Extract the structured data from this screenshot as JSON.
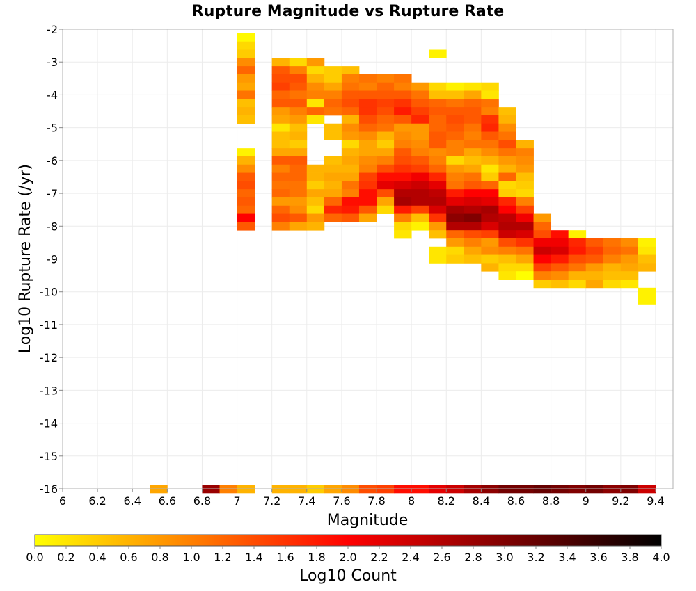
{
  "chart_data": {
    "type": "heatmap",
    "title": "Rupture Magnitude vs Rupture Rate",
    "xlabel": "Magnitude",
    "ylabel": "Log10 Rupture Rate (/yr)",
    "colorbar_label": "Log10 Count",
    "xlim": [
      6.0,
      9.5
    ],
    "ylim": [
      -16,
      -2
    ],
    "x_ticks": [
      "6",
      "6.2",
      "6.4",
      "6.6",
      "6.8",
      "7",
      "7.2",
      "7.4",
      "7.6",
      "7.8",
      "8",
      "8.2",
      "8.4",
      "8.6",
      "8.8",
      "9",
      "9.2",
      "9.4"
    ],
    "y_ticks": [
      "-2",
      "-3",
      "-4",
      "-5",
      "-6",
      "-7",
      "-8",
      "-9",
      "-10",
      "-11",
      "-12",
      "-13",
      "-14",
      "-15",
      "-16"
    ],
    "colorbar_ticks": [
      "0.0",
      "0.2",
      "0.4",
      "0.6",
      "0.8",
      "1.0",
      "1.2",
      "1.4",
      "1.6",
      "1.8",
      "2.0",
      "2.2",
      "2.4",
      "2.6",
      "2.8",
      "3.0",
      "3.2",
      "3.4",
      "3.6",
      "3.8",
      "4.0"
    ],
    "color_range": [
      0.0,
      4.0
    ],
    "colormap": [
      "#ffff00",
      "#ff0000",
      "#000000"
    ],
    "cell_width_mag": 0.1,
    "cell_height_log_rate": 0.25,
    "grid": true,
    "columns": [
      {
        "mag": 6.55,
        "cells": [
          [
            -16,
            0.7
          ]
        ]
      },
      {
        "mag": 6.85,
        "cells": [
          [
            -16,
            2.8
          ]
        ]
      },
      {
        "mag": 6.95,
        "cells": [
          [
            -16,
            1.0
          ]
        ]
      },
      {
        "mag": 7.05,
        "start": -2.25,
        "values": [
          0.05,
          0.3,
          0.4,
          0.9,
          1.2,
          0.8,
          0.7,
          1.1,
          0.5,
          0.6,
          0.5,
          null,
          null,
          null,
          0.1,
          0.6,
          0.9,
          1.3,
          1.4,
          1.2,
          1.3,
          1.2,
          2.0,
          1.3
        ]
      },
      {
        "mag": 7.05,
        "cells": [
          [
            -16,
            0.6
          ]
        ]
      },
      {
        "mag": 7.25,
        "start": -3.0,
        "values": [
          0.6,
          1.3,
          1.4,
          1.5,
          1.2,
          1.3,
          0.8,
          0.7,
          0.2,
          0.5,
          0.5,
          0.7,
          1.3,
          1.0,
          1.2,
          1.1,
          1.2,
          0.8,
          1.2,
          1.4,
          1.0
        ]
      },
      {
        "mag": 7.25,
        "cells": [
          [
            -16,
            0.6
          ]
        ]
      },
      {
        "mag": 7.35,
        "start": -3.0,
        "values": [
          0.3,
          1.0,
          1.4,
          1.3,
          1.1,
          1.3,
          1.0,
          0.8,
          0.5,
          0.6,
          0.4,
          0.7,
          1.3,
          1.2,
          1.2,
          1.1,
          1.1,
          0.8,
          0.9,
          1.3,
          0.7
        ]
      },
      {
        "mag": 7.35,
        "cells": [
          [
            -16,
            0.6
          ]
        ]
      },
      {
        "mag": 7.45,
        "start": -3.0,
        "values": [
          0.8,
          0.3,
          0.6,
          0.9,
          1.0,
          0.2,
          1.2,
          0.2,
          null,
          null,
          null,
          null,
          null,
          0.6,
          0.6,
          0.4,
          0.7,
          0.5,
          0.3,
          0.8,
          0.6
        ]
      },
      {
        "mag": 7.45,
        "cells": [
          [
            -16,
            0.4
          ]
        ]
      },
      {
        "mag": 7.55,
        "start": -3.25,
        "values": [
          0.4,
          0.4,
          0.7,
          1.0,
          1.2,
          1.1,
          null,
          0.5,
          0.5,
          null,
          null,
          0.5,
          0.6,
          0.7,
          0.6,
          0.7,
          1.2,
          1.7,
          1.2
        ]
      },
      {
        "mag": 7.55,
        "cells": [
          [
            -16,
            0.7
          ]
        ]
      },
      {
        "mag": 7.65,
        "start": -3.25,
        "values": [
          0.5,
          1.0,
          1.1,
          1.3,
          1.4,
          1.2,
          0.6,
          0.9,
          0.8,
          0.3,
          0.6,
          0.7,
          0.6,
          0.7,
          1.1,
          1.0,
          1.9,
          1.8,
          1.3
        ]
      },
      {
        "mag": 7.65,
        "cells": [
          [
            -16,
            0.9
          ]
        ]
      },
      {
        "mag": 7.75,
        "start": -3.5,
        "values": [
          1.1,
          1.0,
          1.3,
          1.6,
          1.6,
          1.4,
          1.2,
          0.9,
          0.7,
          0.7,
          0.9,
          1.0,
          1.5,
          1.6,
          1.9,
          1.9,
          1.3,
          0.7
        ]
      },
      {
        "mag": 7.75,
        "cells": [
          [
            -16,
            1.4
          ]
        ]
      },
      {
        "mag": 7.85,
        "start": -3.5,
        "values": [
          1.0,
          1.2,
          1.3,
          1.5,
          1.4,
          1.2,
          1.1,
          0.6,
          0.4,
          0.7,
          1.0,
          1.4,
          1.9,
          2.2,
          1.4,
          0.7,
          0.3
        ]
      },
      {
        "mag": 7.85,
        "cells": [
          [
            -16,
            1.5
          ]
        ]
      },
      {
        "mag": 7.95,
        "start": -3.5,
        "values": [
          1.1,
          1.0,
          1.3,
          1.6,
          1.8,
          1.3,
          0.8,
          0.9,
          1.0,
          1.3,
          1.4,
          1.6,
          1.9,
          2.3,
          2.6,
          2.7,
          1.8,
          1.0,
          0.3,
          0.2
        ]
      },
      {
        "mag": 7.95,
        "cells": [
          [
            -16,
            1.9
          ]
        ]
      },
      {
        "mag": 8.05,
        "start": -3.75,
        "values": [
          0.8,
          1.1,
          1.3,
          1.5,
          1.7,
          0.8,
          0.8,
          0.9,
          1.0,
          1.3,
          1.5,
          2.1,
          2.4,
          2.6,
          2.6,
          1.5,
          0.5,
          0.1
        ]
      },
      {
        "mag": 8.05,
        "cells": [
          [
            -16,
            1.9
          ]
        ]
      },
      {
        "mag": 8.15,
        "start": -2.75,
        "values": [
          0.1,
          null,
          null,
          null,
          0.3,
          0.5,
          1.2,
          1.3,
          1.2,
          1.2,
          1.3,
          1.3,
          0.9,
          1.0,
          1.2,
          1.7,
          2.2,
          2.5,
          2.6,
          2.3,
          1.6,
          0.8,
          0.5,
          null,
          0.2,
          0.2
        ]
      },
      {
        "mag": 8.15,
        "cells": [
          [
            -16,
            2.2
          ]
        ]
      },
      {
        "mag": 8.25,
        "start": -3.75,
        "values": [
          0.1,
          0.5,
          1.1,
          1.3,
          1.4,
          1.3,
          1.2,
          1.0,
          1.0,
          0.3,
          0.8,
          1.0,
          1.1,
          1.8,
          2.2,
          2.7,
          2.9,
          2.6,
          1.2,
          0.8,
          0.3,
          0.4
        ]
      },
      {
        "mag": 8.25,
        "cells": [
          [
            -16,
            2.4
          ]
        ]
      },
      {
        "mag": 8.35,
        "start": -3.75,
        "values": [
          0.2,
          0.7,
          1.2,
          1.3,
          1.3,
          1.1,
          1.0,
          1.1,
          0.7,
          0.5,
          0.7,
          1.1,
          1.3,
          2.0,
          2.3,
          2.6,
          3.0,
          2.6,
          1.4,
          1.0,
          0.7,
          0.5
        ]
      },
      {
        "mag": 8.35,
        "cells": [
          [
            -16,
            2.7
          ]
        ]
      },
      {
        "mag": 8.45,
        "start": -3.75,
        "values": [
          0.3,
          0.2,
          1.1,
          1.0,
          1.6,
          1.7,
          1.3,
          1.1,
          0.9,
          0.6,
          0.2,
          0.4,
          1.2,
          2.0,
          2.2,
          2.7,
          2.6,
          2.3,
          1.5,
          0.8,
          0.9,
          0.4,
          0.6
        ]
      },
      {
        "mag": 8.45,
        "cells": [
          [
            -16,
            2.9
          ]
        ]
      },
      {
        "mag": 8.55,
        "start": -4.5,
        "values": [
          0.5,
          0.6,
          0.9,
          1.1,
          1.4,
          1.1,
          0.8,
          0.6,
          1.2,
          0.3,
          0.4,
          1.7,
          2.0,
          2.5,
          2.6,
          2.4,
          1.4,
          1.0,
          0.5,
          0.3,
          0.2
        ]
      },
      {
        "mag": 8.55,
        "cells": [
          [
            -16,
            3.1
          ]
        ]
      },
      {
        "mag": 8.65,
        "start": -5.5,
        "values": [
          0.6,
          1.0,
          0.9,
          0.8,
          0.5,
          0.4,
          0.3,
          1.0,
          1.5,
          2.1,
          2.6,
          2.3,
          1.6,
          1.1,
          0.7,
          0.3,
          0.0
        ]
      },
      {
        "mag": 8.65,
        "cells": [
          [
            -16,
            3.1
          ]
        ]
      },
      {
        "mag": 8.75,
        "start": -7.75,
        "values": [
          0.8,
          1.2,
          1.4,
          2.1,
          2.4,
          2.0,
          1.5,
          1.0,
          0.4
        ]
      },
      {
        "mag": 8.75,
        "cells": [
          [
            -16,
            3.2
          ]
        ]
      },
      {
        "mag": 8.85,
        "start": -8.25,
        "values": [
          1.9,
          2.1,
          2.3,
          1.8,
          1.3,
          0.9,
          0.5
        ]
      },
      {
        "mag": 8.85,
        "cells": [
          [
            -16,
            3.1
          ]
        ]
      },
      {
        "mag": 8.95,
        "start": -8.25,
        "values": [
          0.1,
          1.7,
          1.8,
          1.4,
          1.1,
          0.6,
          0.3,
          null
        ]
      },
      {
        "mag": 8.95,
        "cells": [
          [
            -16,
            3.0
          ]
        ]
      },
      {
        "mag": 9.05,
        "start": -8.5,
        "values": [
          1.3,
          1.5,
          1.3,
          0.8,
          0.6,
          0.7
        ]
      },
      {
        "mag": 9.05,
        "cells": [
          [
            -16,
            3.1
          ]
        ]
      },
      {
        "mag": 9.15,
        "start": -8.5,
        "values": [
          1.1,
          1.2,
          1.0,
          0.6,
          0.5,
          0.3
        ]
      },
      {
        "mag": 9.15,
        "cells": [
          [
            -16,
            2.9
          ]
        ]
      },
      {
        "mag": 9.25,
        "start": -8.5,
        "values": [
          0.9,
          1.1,
          0.8,
          0.7,
          0.5,
          0.2
        ]
      },
      {
        "mag": 9.25,
        "cells": [
          [
            -16,
            3.0
          ]
        ]
      },
      {
        "mag": 9.35,
        "start": -8.5,
        "values": [
          0.1,
          0.2,
          0.5,
          0.6,
          null,
          null,
          0.1,
          0.1
        ]
      },
      {
        "mag": 9.35,
        "cells": [
          [
            -16,
            2.4
          ]
        ]
      }
    ]
  }
}
